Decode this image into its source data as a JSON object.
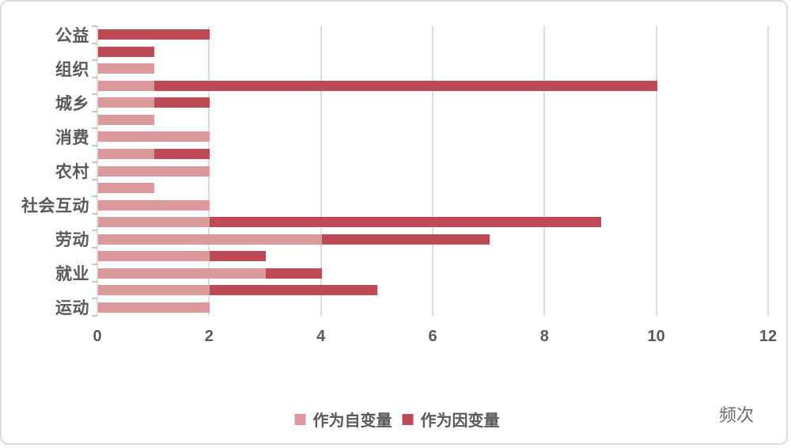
{
  "chart_data": {
    "type": "bar",
    "orientation": "horizontal",
    "stacked": true,
    "title": "",
    "xlabel": "频次",
    "ylabel": "",
    "xlim": [
      0,
      12
    ],
    "x_ticks": [
      0,
      2,
      4,
      6,
      8,
      10,
      12
    ],
    "grid": true,
    "legend_position": "bottom-center",
    "categories": [
      "公益",
      "",
      "组织",
      "",
      "城乡",
      "",
      "消费",
      "",
      "农村",
      "",
      "社会互动",
      "",
      "劳动",
      "",
      "就业",
      "",
      "运动"
    ],
    "series": [
      {
        "name": "作为自变量",
        "color": "#db999c",
        "values": [
          0,
          0,
          1,
          1,
          1,
          1,
          2,
          1,
          2,
          1,
          2,
          2,
          4,
          2,
          3,
          2,
          2
        ]
      },
      {
        "name": "作为因变量",
        "color": "#bd4a54",
        "values": [
          2,
          1,
          0,
          9,
          1,
          0,
          0,
          1,
          0,
          0,
          0,
          7,
          3,
          1,
          1,
          3,
          0
        ]
      }
    ]
  },
  "colors": {
    "gridline": "#dcdcdc",
    "tick": "#c9c9c9",
    "label_text": "#595959",
    "frame_border": "#dbdbdb",
    "background": "#ffffff"
  }
}
